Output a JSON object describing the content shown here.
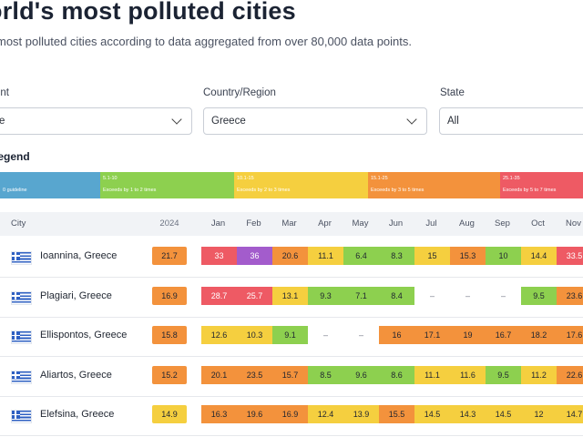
{
  "header": {
    "title": "orld's most polluted cities",
    "subtitle": "most polluted cities according to data aggregated from over 80,000 data points."
  },
  "filters": [
    {
      "label": "ent",
      "value": "e"
    },
    {
      "label": "Country/Region",
      "value": "Greece"
    },
    {
      "label": "State",
      "value": "All"
    }
  ],
  "legend": {
    "title": "legend",
    "segments": [
      {
        "range": "",
        "desc": "0 guideline",
        "color": "#58a6cf"
      },
      {
        "range": "5.1-10",
        "desc": "Exceeds by 1 to 2 times",
        "color": "#8dd04f"
      },
      {
        "range": "10.1-15",
        "desc": "Exceeds by 2 to 3 times",
        "color": "#f5cf3f"
      },
      {
        "range": "15.1-25",
        "desc": "Exceeds by 3 to 5 times",
        "color": "#f3923c"
      },
      {
        "range": "25.1-35",
        "desc": "Exceeds by 5 to 7 times",
        "color": "#ee5a64"
      }
    ]
  },
  "table": {
    "headers": {
      "city": "City",
      "year": "2024",
      "months": [
        "Jan",
        "Feb",
        "Mar",
        "Apr",
        "May",
        "Jun",
        "Jul",
        "Aug",
        "Sep",
        "Oct",
        "Nov"
      ]
    },
    "rows": [
      {
        "city": "Ioannina, Greece",
        "year": "21.7",
        "months": [
          "33",
          "36",
          "20.6",
          "11.1",
          "6.4",
          "8.3",
          "15",
          "15.3",
          "10",
          "14.4",
          "33.5"
        ]
      },
      {
        "city": "Plagiari, Greece",
        "year": "16.9",
        "months": [
          "28.7",
          "25.7",
          "13.1",
          "9.3",
          "7.1",
          "8.4",
          "–",
          "–",
          "–",
          "9.5",
          "23.6"
        ]
      },
      {
        "city": "Ellispontos, Greece",
        "year": "15.8",
        "months": [
          "12.6",
          "10.3",
          "9.1",
          "–",
          "–",
          "16",
          "17.1",
          "19",
          "16.7",
          "18.2",
          "17.6"
        ]
      },
      {
        "city": "Aliartos, Greece",
        "year": "15.2",
        "months": [
          "20.1",
          "23.5",
          "15.7",
          "8.5",
          "9.6",
          "8.6",
          "11.1",
          "11.6",
          "9.5",
          "11.2",
          "22.6"
        ]
      },
      {
        "city": "Elefsina, Greece",
        "year": "14.9",
        "months": [
          "16.3",
          "19.6",
          "16.9",
          "12.4",
          "13.9",
          "15.5",
          "14.5",
          "14.3",
          "14.5",
          "12",
          "14.7"
        ]
      }
    ]
  },
  "colors": {
    "green": "#8dd04f",
    "yellow": "#f5cf3f",
    "orange": "#f3923c",
    "red": "#ee5a64",
    "purple": "#a35ccc",
    "blue": "#58a6cf",
    "none": "#ffffff"
  },
  "icons": {
    "flag": "greece-flag-icon",
    "chevron": "chevron-down-icon"
  }
}
